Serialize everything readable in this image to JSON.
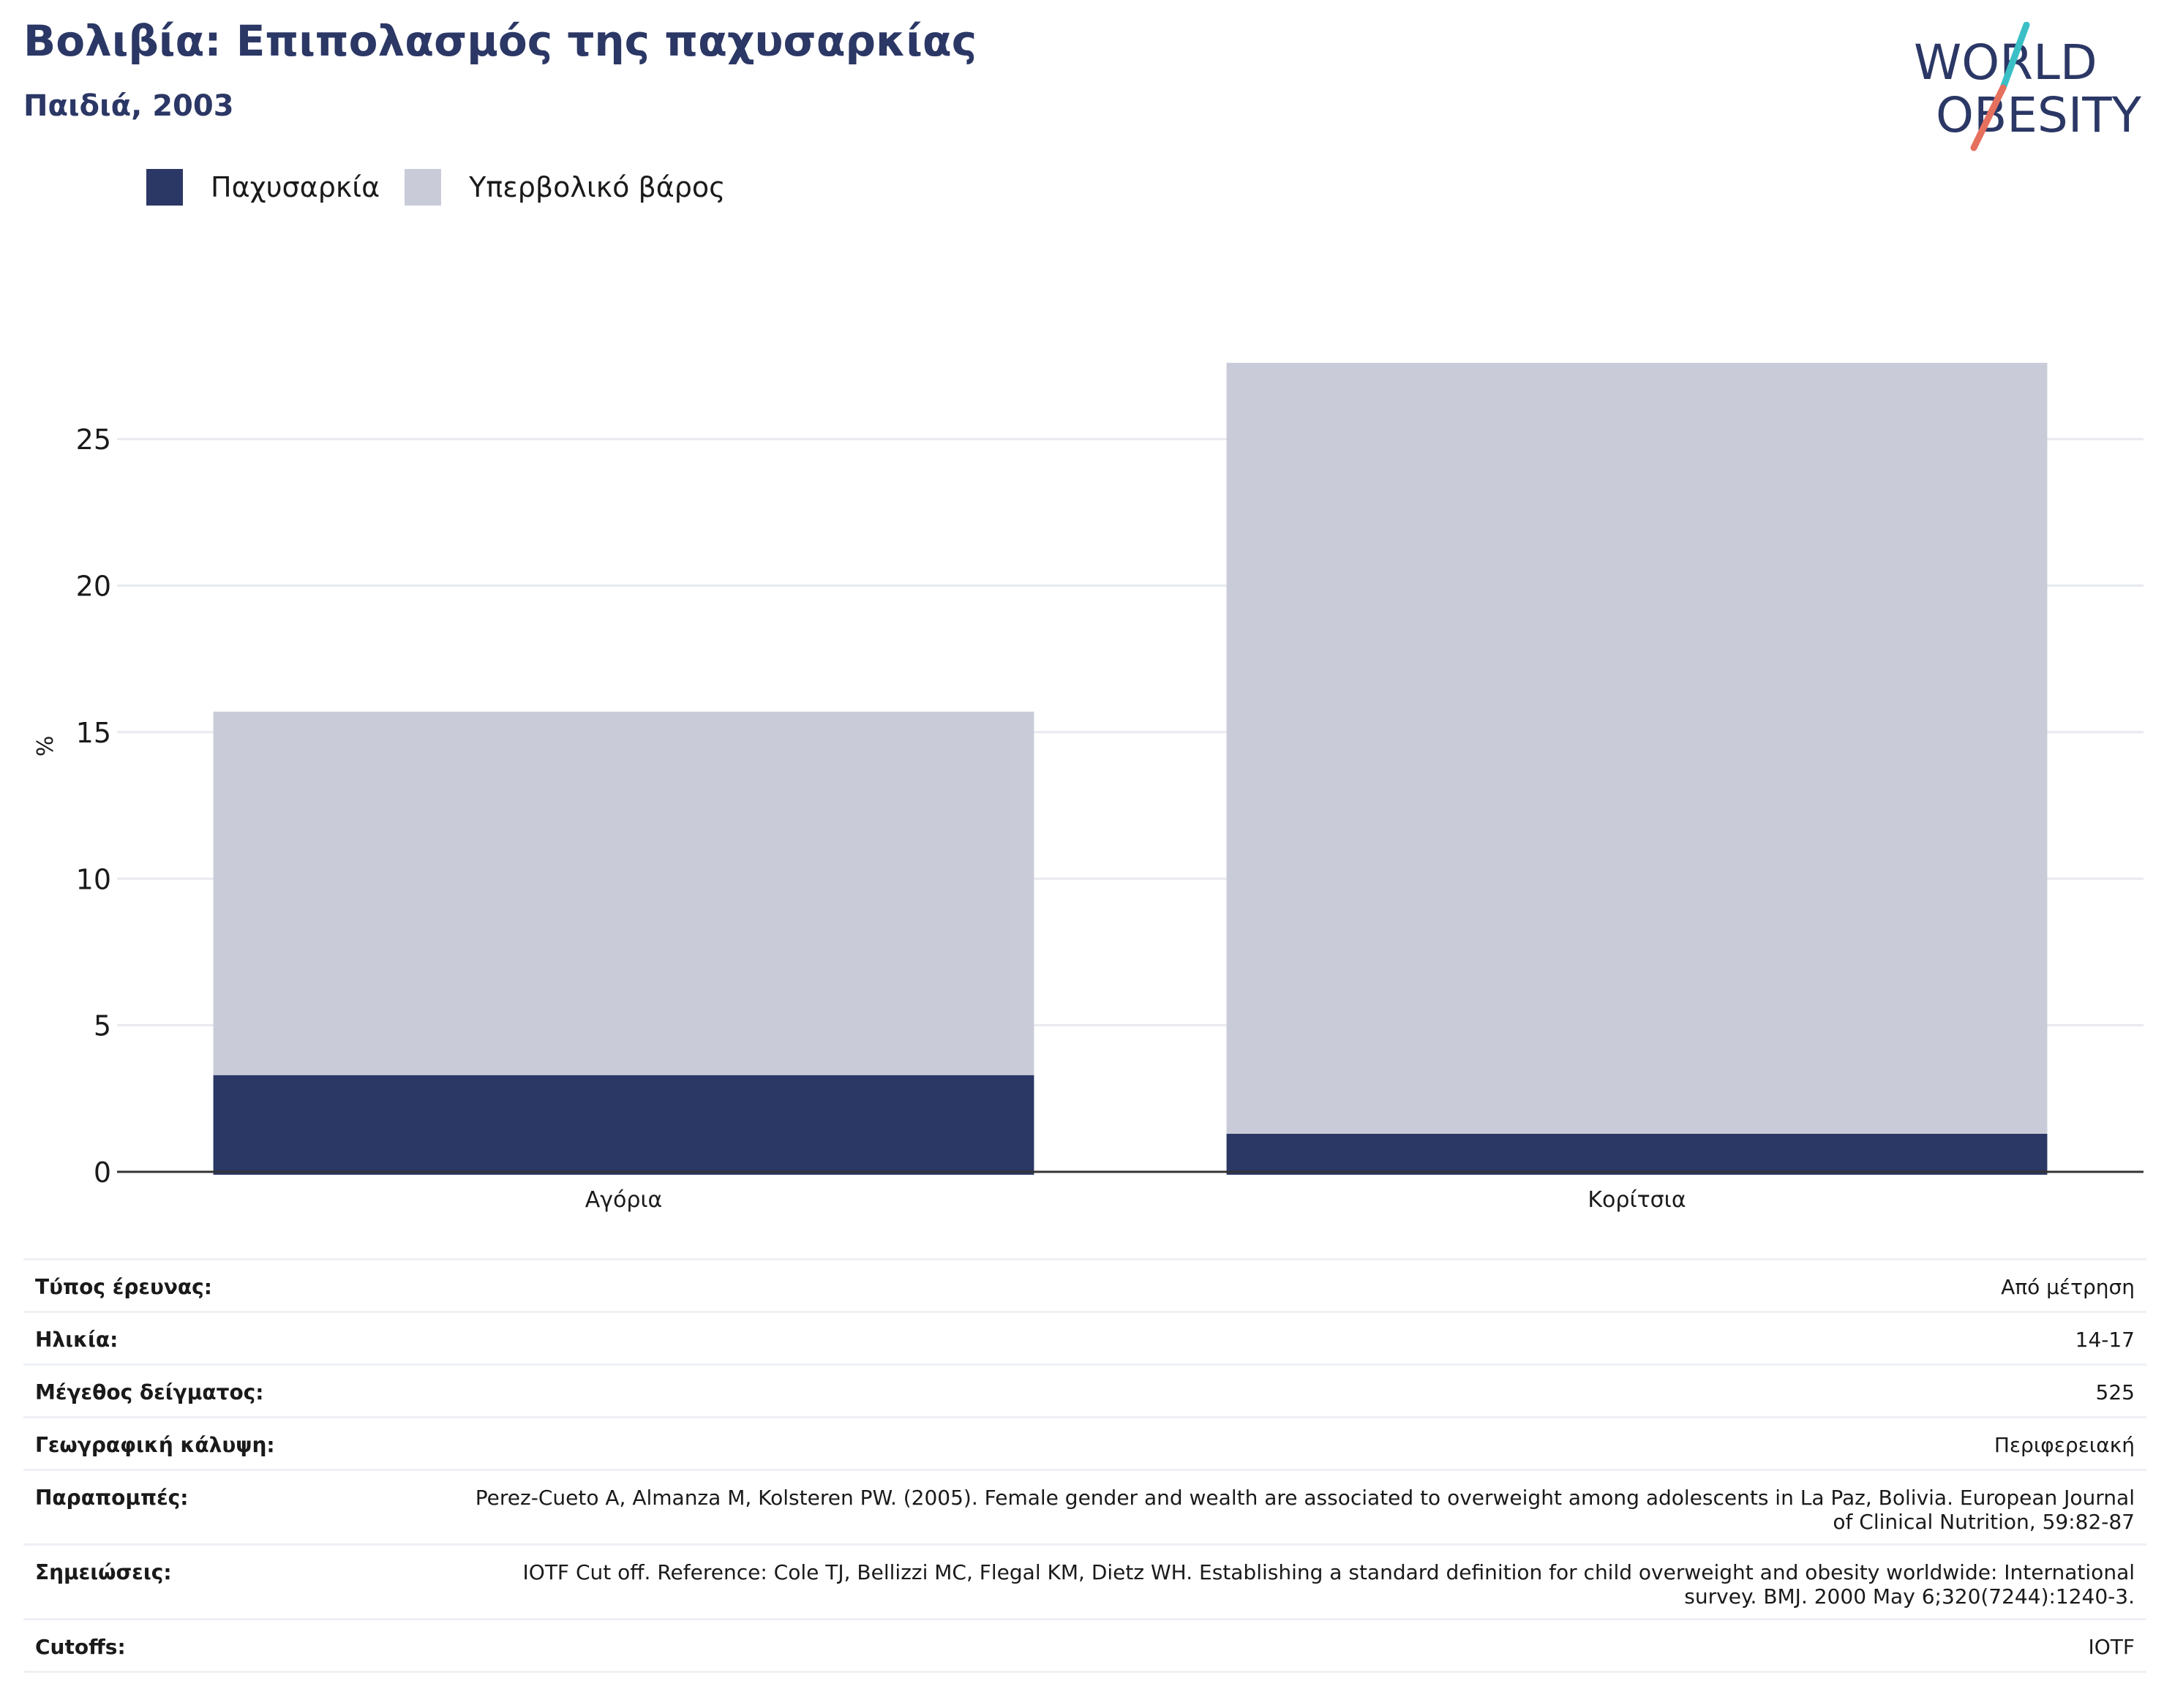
{
  "header": {
    "title": "Βολιβία: Επιπολασμός της παχυσαρκίας",
    "subtitle": "Παιδιά, 2003"
  },
  "logo": {
    "line1": "WORLD",
    "line2": "OBESITY",
    "colors": {
      "text": "#2b3765",
      "slash_top": "#3bbfc6",
      "slash_bottom": "#e5705e"
    }
  },
  "legend": [
    {
      "label": "Παχυσαρκία",
      "color": "#2b3765"
    },
    {
      "label": "Υπερβολικό βάρος",
      "color": "#c9ccd8"
    }
  ],
  "chart_data": {
    "type": "bar",
    "stacked": true,
    "categories": [
      "Αγόρια",
      "Κορίτσια"
    ],
    "series": [
      {
        "name": "Παχυσαρκία",
        "values": [
          3.3,
          1.3
        ],
        "color": "#2b3765"
      },
      {
        "name": "Υπερβολικό βάρος",
        "values": [
          12.4,
          26.3
        ],
        "color": "#c9ccd8"
      }
    ],
    "ylabel": "%",
    "ylim": [
      0,
      27.7
    ],
    "yticks": [
      0,
      5,
      10,
      15,
      20,
      25
    ],
    "grid": true,
    "legend_position": "top-left"
  },
  "info": [
    {
      "label": "Τύπος έρευνας:",
      "value": "Από μέτρηση"
    },
    {
      "label": "Ηλικία:",
      "value": "14-17"
    },
    {
      "label": "Μέγεθος δείγματος:",
      "value": "525"
    },
    {
      "label": "Γεωγραφική κάλυψη:",
      "value": "Περιφερειακή"
    },
    {
      "label": "Παραπομπές:",
      "value": "Perez-Cueto A, Almanza M, Kolsteren PW. (2005). Female gender and wealth are associated to overweight among adolescents in La Paz, Bolivia. European Journal of Clinical Nutrition, 59:82-87"
    },
    {
      "label": "Σημειώσεις:",
      "value": "IOTF Cut off. Reference: Cole TJ, Bellizzi MC, Flegal KM, Dietz WH. Establishing a standard definition for child overweight and obesity worldwide: International survey. BMJ. 2000 May 6;320(7244):1240-3."
    },
    {
      "label": "Cutoffs:",
      "value": "IOTF"
    }
  ]
}
